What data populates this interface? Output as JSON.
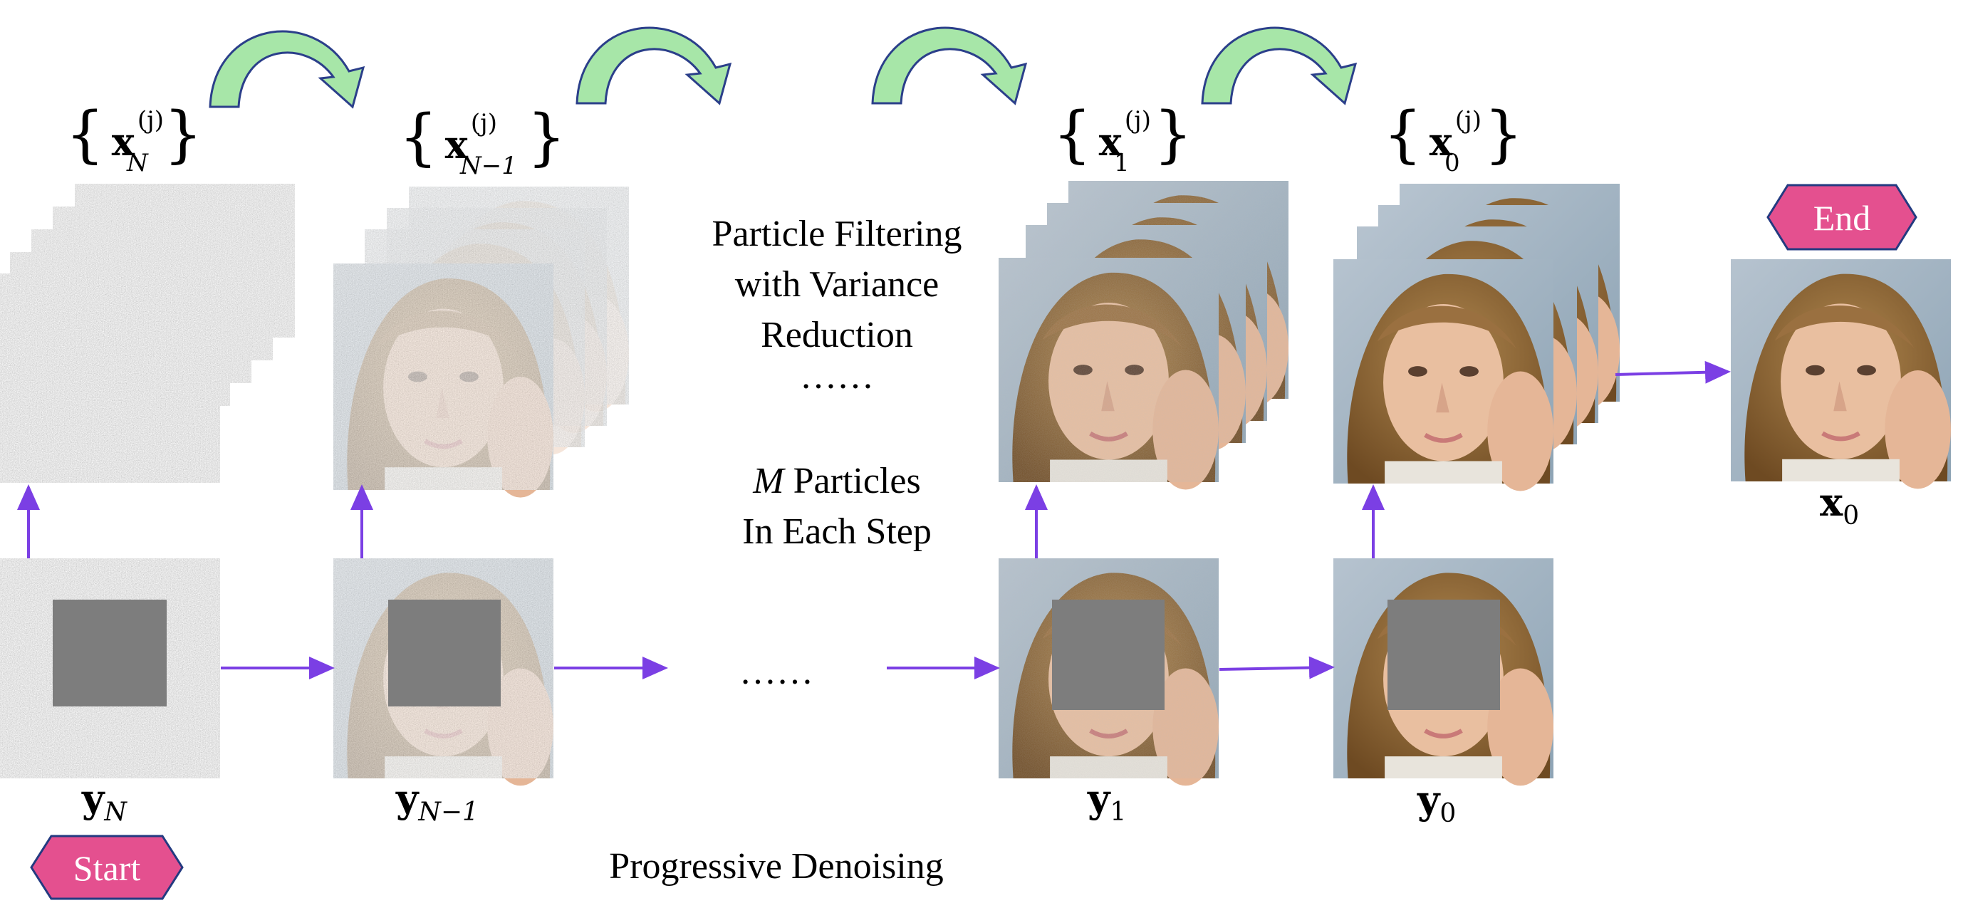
{
  "caption_top": [
    "Particle Filtering",
    "with Variance",
    "Reduction"
  ],
  "ellipsis": "……",
  "particles_note": {
    "var": "M",
    "line1_rest": " Particles",
    "line2": "In Each Step"
  },
  "progressive_label": "Progressive Denoising",
  "start_label": "Start",
  "end_label": "End",
  "labels": {
    "xN": {
      "base": "x",
      "sub": "N",
      "sup": "(j)"
    },
    "xN1": {
      "base": "x",
      "sub": "N−1",
      "sup": "(j)"
    },
    "x1": {
      "base": "x",
      "sub": "1",
      "sup": "(j)"
    },
    "x0set": {
      "base": "x",
      "sub": "0",
      "sup": "(j)"
    },
    "x0": {
      "base": "x",
      "sub": "0"
    },
    "yN": {
      "base": "y",
      "sub": "N"
    },
    "yN1": {
      "base": "y",
      "sub": "N−1"
    },
    "y1": {
      "base": "y",
      "sub": "1"
    },
    "y0": {
      "base": "y",
      "sub": "0"
    }
  },
  "colors": {
    "arrow_purple": "#7b3fe4",
    "curved_arrow_fill": "#a7e6a8",
    "curved_arrow_stroke": "#2b3f8a",
    "badge_fill": "#e4508f",
    "badge_stroke": "#233a80",
    "noise_gray": "#8a8a8a",
    "mask_gray": "#7d7d7d",
    "skin": "#e6b99b",
    "hair": "#8a6233",
    "background_blue": "#9fb2c2"
  }
}
